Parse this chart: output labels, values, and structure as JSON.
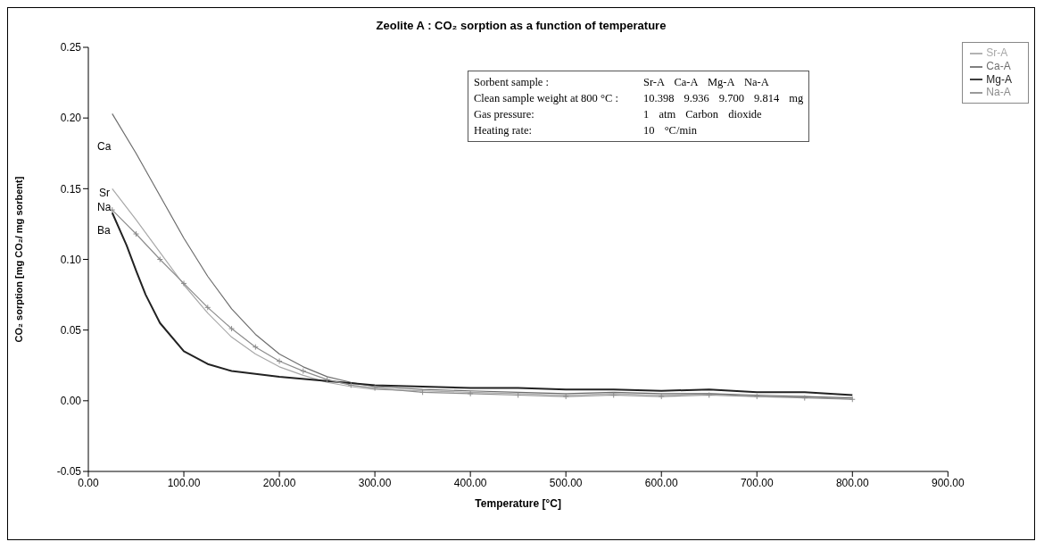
{
  "chart_data": {
    "type": "line",
    "title": "Zeolite A : CO₂ sorption as a function of temperature",
    "xlabel": "Temperature [°C]",
    "ylabel": "CO₂ sorption [mg CO₂/ mg sorbent]",
    "xlim": [
      0,
      900
    ],
    "xticks": [
      {
        "value": 0,
        "label": "0.00"
      },
      {
        "value": 100,
        "label": "100.00"
      },
      {
        "value": 200,
        "label": "200.00"
      },
      {
        "value": 300,
        "label": "300.00"
      },
      {
        "value": 400,
        "label": "400.00"
      },
      {
        "value": 500,
        "label": "500.00"
      },
      {
        "value": 600,
        "label": "600.00"
      },
      {
        "value": 700,
        "label": "700.00"
      },
      {
        "value": 800,
        "label": "800.00"
      },
      {
        "value": 900,
        "label": "900.00"
      }
    ],
    "ylim": [
      -0.05,
      0.25
    ],
    "yticks": [
      {
        "value": -0.05,
        "label": "-0.05"
      },
      {
        "value": 0,
        "label": "0.00"
      },
      {
        "value": 0.05,
        "label": "0.05"
      },
      {
        "value": 0.1,
        "label": "0.10"
      },
      {
        "value": 0.15,
        "label": "0.15"
      },
      {
        "value": 0.2,
        "label": "0.20"
      },
      {
        "value": 0.25,
        "label": "0.25"
      }
    ],
    "grid": false,
    "legend": "top right",
    "line_style": "solid",
    "series": [
      {
        "name": "Sr-A",
        "color": "#a8a8a8",
        "marker": "none",
        "x": [
          25,
          50,
          75,
          100,
          125,
          150,
          175,
          200,
          225,
          250,
          275,
          300,
          350,
          400,
          450,
          500,
          550,
          600,
          650,
          700,
          750,
          800
        ],
        "values": [
          0.15,
          0.128,
          0.105,
          0.082,
          0.062,
          0.045,
          0.033,
          0.024,
          0.018,
          0.013,
          0.01,
          0.008,
          0.007,
          0.006,
          0.005,
          0.004,
          0.005,
          0.004,
          0.005,
          0.003,
          0.003,
          0.001
        ]
      },
      {
        "name": "Ca-A",
        "color": "#6e6e6e",
        "marker": "none",
        "x": [
          25,
          50,
          75,
          100,
          125,
          150,
          175,
          200,
          225,
          250,
          275,
          300,
          350,
          400,
          450,
          500,
          550,
          600,
          650,
          700,
          750,
          800
        ],
        "values": [
          0.203,
          0.175,
          0.145,
          0.115,
          0.088,
          0.065,
          0.047,
          0.033,
          0.024,
          0.017,
          0.013,
          0.01,
          0.008,
          0.007,
          0.006,
          0.005,
          0.006,
          0.005,
          0.005,
          0.004,
          0.003,
          0.002
        ]
      },
      {
        "name": "Mg-A",
        "color": "#222222",
        "marker": "none",
        "x": [
          25,
          40,
          50,
          60,
          75,
          100,
          125,
          150,
          200,
          250,
          300,
          350,
          400,
          450,
          500,
          550,
          600,
          650,
          700,
          750,
          800
        ],
        "values": [
          0.133,
          0.11,
          0.092,
          0.075,
          0.055,
          0.035,
          0.026,
          0.021,
          0.017,
          0.014,
          0.011,
          0.01,
          0.009,
          0.009,
          0.008,
          0.008,
          0.007,
          0.008,
          0.006,
          0.006,
          0.004
        ]
      },
      {
        "name": "Na-A",
        "color": "#8c8c8c",
        "marker": "cross",
        "x": [
          25,
          50,
          75,
          100,
          125,
          150,
          175,
          200,
          225,
          250,
          275,
          300,
          350,
          400,
          450,
          500,
          550,
          600,
          650,
          700,
          750,
          800
        ],
        "values": [
          0.135,
          0.118,
          0.1,
          0.083,
          0.066,
          0.051,
          0.038,
          0.028,
          0.021,
          0.015,
          0.011,
          0.009,
          0.006,
          0.005,
          0.004,
          0.003,
          0.004,
          0.003,
          0.004,
          0.003,
          0.002,
          0.001
        ]
      }
    ],
    "annotations": [
      "Sorbent sample :",
      "Sr-A Ca-A Mg-A Na-A",
      "Clean sample weight at 800 °C :",
      "10.398 9.936 9.700 9.814 mg",
      "Gas pressure:",
      "1 atm Carbon dioxide",
      "Heating rate:",
      "10 °C/min",
      "Ca",
      "Sr",
      "Na",
      "Ba"
    ]
  }
}
